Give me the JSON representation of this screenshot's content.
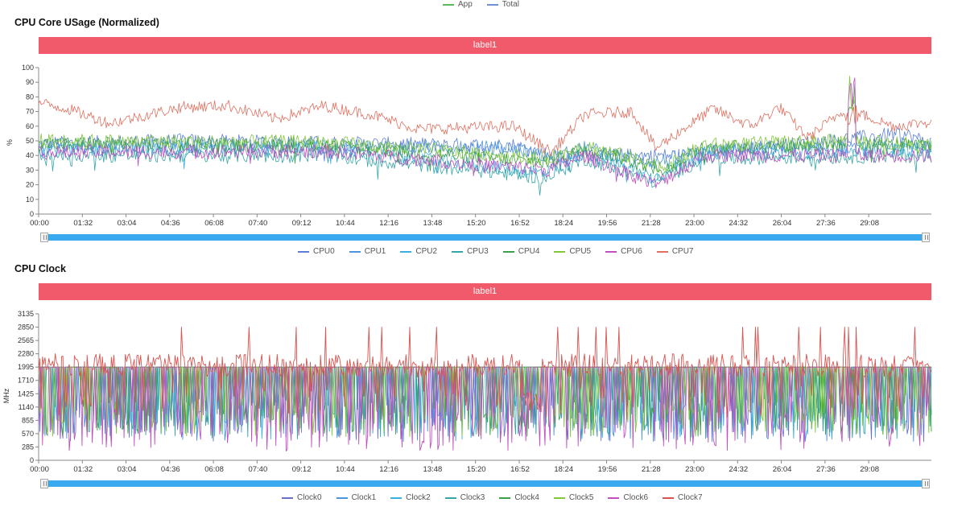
{
  "top_legend": [
    {
      "name": "App",
      "color": "#5cb85c"
    },
    {
      "name": "Total",
      "color": "#6f8fd8"
    }
  ],
  "usage_panel": {
    "title": "CPU Core USage (Normalized)",
    "label_bar": "label1",
    "ylabel": "%",
    "legend": [
      {
        "name": "CPU0",
        "color": "#5b7fd6"
      },
      {
        "name": "CPU1",
        "color": "#4b95dd"
      },
      {
        "name": "CPU2",
        "color": "#3bb0e0"
      },
      {
        "name": "CPU3",
        "color": "#36a6a8"
      },
      {
        "name": "CPU4",
        "color": "#3aa04a"
      },
      {
        "name": "CPU5",
        "color": "#7ec83a"
      },
      {
        "name": "CPU6",
        "color": "#c04fc0"
      },
      {
        "name": "CPU7",
        "color": "#e07060"
      }
    ]
  },
  "clock_panel": {
    "title": "CPU Clock",
    "label_bar": "label1",
    "ylabel": "MHz",
    "legend": [
      {
        "name": "Clock0",
        "color": "#6a70c8"
      },
      {
        "name": "Clock1",
        "color": "#4b95dd"
      },
      {
        "name": "Clock2",
        "color": "#3bb0e0"
      },
      {
        "name": "Clock3",
        "color": "#36a6a8"
      },
      {
        "name": "Clock4",
        "color": "#3aa04a"
      },
      {
        "name": "Clock5",
        "color": "#7ec83a"
      },
      {
        "name": "Clock6",
        "color": "#c04fc0"
      },
      {
        "name": "Clock7",
        "color": "#d9534f"
      }
    ]
  },
  "chart_data": [
    {
      "type": "line",
      "title": "CPU Core USage (Normalized)",
      "ylabel": "%",
      "ylim": [
        0,
        100
      ],
      "yticks": [
        0,
        10,
        20,
        30,
        40,
        50,
        60,
        70,
        80,
        90,
        100
      ],
      "xticks": [
        "00:00",
        "01:32",
        "03:04",
        "04:36",
        "06:08",
        "07:40",
        "09:12",
        "10:44",
        "12:16",
        "13:48",
        "15:20",
        "16:52",
        "18:24",
        "19:56",
        "21:28",
        "23:00",
        "24:32",
        "26:04",
        "27:36",
        "29:08"
      ],
      "x_range_sec": [
        0,
        1880
      ],
      "series": [
        {
          "name": "CPU0",
          "baseline": [
            [
              0,
              48
            ],
            [
              300,
              50
            ],
            [
              900,
              47
            ],
            [
              1000,
              47
            ],
            [
              1080,
              40
            ],
            [
              1340,
              40
            ],
            [
              1600,
              48
            ],
            [
              1820,
              55
            ],
            [
              1880,
              48
            ]
          ]
        },
        {
          "name": "CPU1",
          "baseline": [
            [
              0,
              46
            ],
            [
              400,
              47
            ],
            [
              1000,
              45
            ],
            [
              1080,
              38
            ],
            [
              1150,
              45
            ],
            [
              1300,
              35
            ],
            [
              1400,
              44
            ],
            [
              1880,
              45
            ]
          ]
        },
        {
          "name": "CPU2",
          "baseline": [
            [
              0,
              44
            ],
            [
              600,
              45
            ],
            [
              1070,
              28
            ],
            [
              1150,
              42
            ],
            [
              1300,
              25
            ],
            [
              1400,
              42
            ],
            [
              1880,
              44
            ]
          ]
        },
        {
          "name": "CPU3",
          "baseline": [
            [
              0,
              40
            ],
            [
              600,
              40
            ],
            [
              1070,
              25
            ],
            [
              1150,
              38
            ],
            [
              1300,
              22
            ],
            [
              1400,
              38
            ],
            [
              1880,
              40
            ]
          ]
        },
        {
          "name": "CPU4",
          "baseline": [
            [
              0,
              48
            ],
            [
              600,
              47
            ],
            [
              1070,
              35
            ],
            [
              1150,
              45
            ],
            [
              1320,
              30
            ],
            [
              1400,
              45
            ],
            [
              1700,
              48
            ],
            [
              1880,
              46
            ]
          ]
        },
        {
          "name": "CPU5",
          "baseline": [
            [
              0,
              50
            ],
            [
              600,
              49
            ],
            [
              1070,
              38
            ],
            [
              1150,
              47
            ],
            [
              1320,
              32
            ],
            [
              1400,
              47
            ],
            [
              1700,
              50
            ],
            [
              1880,
              48
            ]
          ]
        },
        {
          "name": "CPU6",
          "baseline": [
            [
              0,
              42
            ],
            [
              600,
              43
            ],
            [
              1070,
              30
            ],
            [
              1150,
              40
            ],
            [
              1300,
              20
            ],
            [
              1400,
              40
            ],
            [
              1880,
              40
            ]
          ]
        },
        {
          "name": "CPU7",
          "baseline": [
            [
              0,
              76
            ],
            [
              60,
              72
            ],
            [
              150,
              62
            ],
            [
              300,
              73
            ],
            [
              400,
              74
            ],
            [
              500,
              65
            ],
            [
              600,
              74
            ],
            [
              700,
              68
            ],
            [
              800,
              58
            ],
            [
              1000,
              60
            ],
            [
              1080,
              42
            ],
            [
              1150,
              68
            ],
            [
              1250,
              70
            ],
            [
              1300,
              45
            ],
            [
              1420,
              72
            ],
            [
              1500,
              60
            ],
            [
              1560,
              73
            ],
            [
              1620,
              52
            ],
            [
              1700,
              72
            ],
            [
              1800,
              60
            ],
            [
              1880,
              63
            ]
          ]
        }
      ]
    },
    {
      "type": "line",
      "title": "CPU Clock",
      "ylabel": "MHz",
      "ylim": [
        0,
        3135
      ],
      "yticks": [
        0,
        285,
        570,
        855,
        1140,
        1425,
        1710,
        1995,
        2280,
        2565,
        2850,
        3135
      ],
      "xticks": [
        "00:00",
        "01:32",
        "03:04",
        "04:36",
        "06:08",
        "07:40",
        "09:12",
        "10:44",
        "12:16",
        "13:48",
        "15:20",
        "16:52",
        "18:24",
        "19:56",
        "21:28",
        "23:00",
        "24:32",
        "26:04",
        "27:36",
        "29:08"
      ],
      "x_range_sec": [
        0,
        1880
      ],
      "series": [
        {
          "name": "Clock0",
          "baseline": [
            [
              0,
              1995
            ],
            [
              1880,
              1995
            ]
          ],
          "min": 400
        },
        {
          "name": "Clock1",
          "baseline": [
            [
              0,
              1995
            ],
            [
              1880,
              1995
            ]
          ],
          "min": 400
        },
        {
          "name": "Clock2",
          "baseline": [
            [
              0,
              1995
            ],
            [
              1880,
              1995
            ]
          ],
          "min": 450
        },
        {
          "name": "Clock3",
          "baseline": [
            [
              0,
              1995
            ],
            [
              1880,
              1995
            ]
          ],
          "min": 450
        },
        {
          "name": "Clock4",
          "baseline": [
            [
              0,
              1995
            ],
            [
              1880,
              1995
            ]
          ],
          "min": 500
        },
        {
          "name": "Clock5",
          "baseline": [
            [
              0,
              1995
            ],
            [
              1880,
              1995
            ]
          ],
          "min": 500
        },
        {
          "name": "Clock6",
          "baseline": [
            [
              0,
              1995
            ],
            [
              1880,
              1995
            ]
          ],
          "min": 200
        },
        {
          "name": "Clock7",
          "baseline": [
            [
              0,
              2280
            ],
            [
              1880,
              2280
            ]
          ],
          "min": 900,
          "peak": 2850
        }
      ]
    }
  ]
}
